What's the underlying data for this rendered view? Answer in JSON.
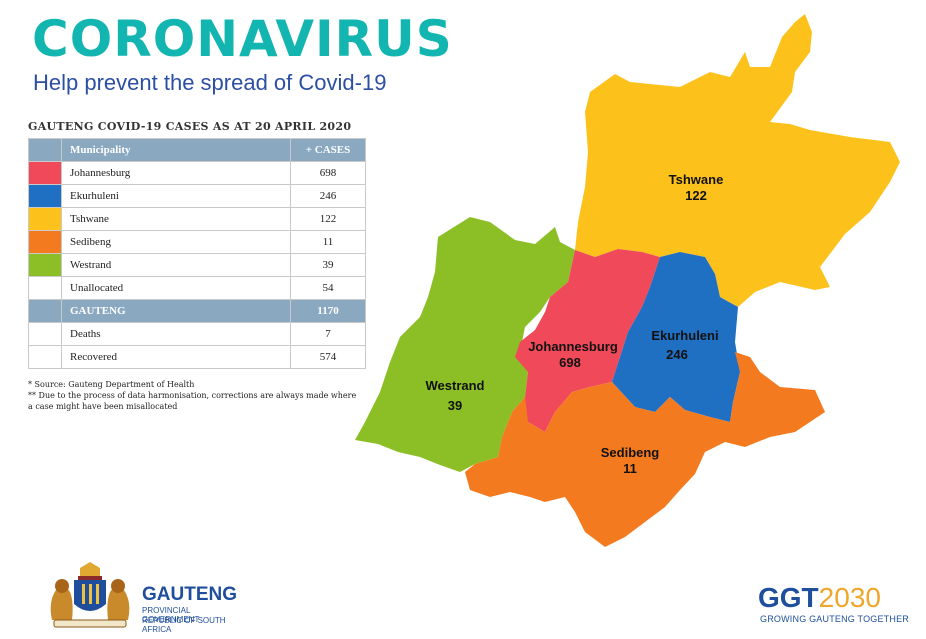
{
  "header": {
    "title": "CORONAVIRUS",
    "subtitle": "Help prevent the spread of Covid-19"
  },
  "table": {
    "title": "GAUTENG COVID-19 CASES AS AT 20 APRIL 2020",
    "col_municipality": "Municipality",
    "col_cases": "+ CASES",
    "rows": [
      {
        "name": "Johannesburg",
        "cases": "698",
        "color": "#f04a5a"
      },
      {
        "name": "Ekurhuleni",
        "cases": "246",
        "color": "#1f6fc2"
      },
      {
        "name": "Tshwane",
        "cases": "122",
        "color": "#fcc21b"
      },
      {
        "name": "Sedibeng",
        "cases": "11",
        "color": "#f47a20"
      },
      {
        "name": "Westrand",
        "cases": "39",
        "color": "#8cbf26"
      },
      {
        "name": "Unallocated",
        "cases": "54",
        "color": "#ffffff"
      }
    ],
    "total": {
      "name": "GAUTENG",
      "cases": "1170"
    },
    "extra": [
      {
        "name": "Deaths",
        "cases": "7"
      },
      {
        "name": "Recovered",
        "cases": "574"
      }
    ]
  },
  "notes": {
    "source": "* Source: Gauteng Department of Health",
    "disclaimer": "** Due to the process of data harmonisation, corrections are always made where a case might have been misallocated"
  },
  "map": {
    "regions": [
      {
        "name": "Tshwane",
        "value": "122",
        "color": "#fcc21b"
      },
      {
        "name": "Johannesburg",
        "value": "698",
        "color": "#f04a5a"
      },
      {
        "name": "Ekurhuleni",
        "value": "246",
        "color": "#1f6fc2"
      },
      {
        "name": "Westrand",
        "value": "39",
        "color": "#8cbf26"
      },
      {
        "name": "Sedibeng",
        "value": "11",
        "color": "#f47a20"
      }
    ]
  },
  "footer": {
    "gauteng": "GAUTENG",
    "gov1": "PROVINCIAL GOVERNMENT",
    "gov2": "REPUBLIC OF SOUTH AFRICA",
    "ggt_a": "GGT",
    "ggt_b": "2030",
    "ggt_sub": "GROWING GAUTENG TOGETHER",
    "crest_icon": "coat-of-arms-icon"
  }
}
